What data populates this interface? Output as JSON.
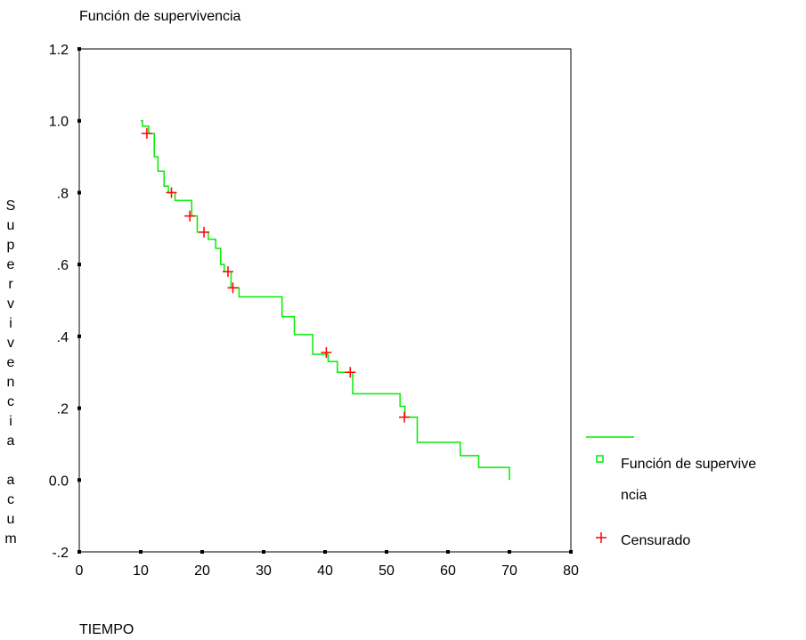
{
  "chart_data": {
    "type": "line",
    "title": "Función de supervivencia",
    "xlabel": "TIEMPO",
    "ylabel": "Supervivencia acum",
    "xlim": [
      0,
      80
    ],
    "ylim": [
      -0.2,
      1.2
    ],
    "x_ticks": [
      0,
      10,
      20,
      30,
      40,
      50,
      60,
      70,
      80
    ],
    "x_tick_labels": [
      "0",
      "10",
      "20",
      "30",
      "40",
      "50",
      "60",
      "70",
      "80"
    ],
    "y_ticks": [
      -0.2,
      0.0,
      0.2,
      0.4,
      0.6,
      0.8,
      1.0,
      1.2
    ],
    "y_tick_labels": [
      "-.2",
      "0.0",
      ".2",
      ".4",
      ".6",
      ".8",
      "1.0",
      "1.2"
    ],
    "grid": false,
    "legend_position": "right",
    "colors": {
      "survival": "#00ee00",
      "censored": "#ff0000"
    },
    "series": [
      {
        "name": "Función de supervivencia",
        "kind": "step",
        "x": [
          10,
          10.3,
          11.3,
          12.2,
          12.8,
          13.8,
          14.5,
          15.6,
          16.2,
          18.3,
          19.2,
          21,
          22.2,
          23,
          23.6,
          24.7,
          26,
          33,
          35,
          38,
          40.5,
          42,
          44.5,
          52.2,
          53,
          55,
          62,
          65,
          70
        ],
        "y": [
          1.0,
          0.985,
          0.965,
          0.9,
          0.86,
          0.818,
          0.8,
          0.778,
          0.778,
          0.735,
          0.69,
          0.67,
          0.645,
          0.6,
          0.58,
          0.535,
          0.51,
          0.455,
          0.405,
          0.35,
          0.33,
          0.3,
          0.24,
          0.205,
          0.175,
          0.105,
          0.068,
          0.035,
          0.0
        ]
      },
      {
        "name": "Censurado",
        "kind": "marker",
        "x": [
          11,
          15,
          18,
          20.3,
          24.2,
          25,
          40.2,
          44.1,
          52.9
        ],
        "y": [
          0.965,
          0.8,
          0.735,
          0.69,
          0.58,
          0.535,
          0.355,
          0.3,
          0.175
        ]
      }
    ],
    "legend": {
      "line_label": "",
      "survival_label_line1": "Función de supervive",
      "survival_label_line2": "ncia",
      "censored_label": "Censurado"
    },
    "ylabel_letters": [
      "S",
      "u",
      "p",
      "e",
      "r",
      "v",
      "i",
      "v",
      "e",
      "n",
      "c",
      "i",
      "a",
      "",
      "a",
      "c",
      "u",
      "m"
    ]
  }
}
